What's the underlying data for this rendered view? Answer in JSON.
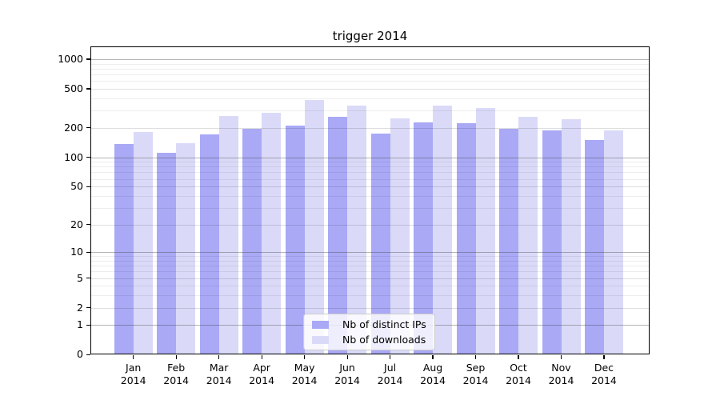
{
  "title": "trigger 2014",
  "chart_data": {
    "type": "bar",
    "title": "trigger 2014",
    "xlabel": "",
    "ylabel": "",
    "yscale": "symlog (log1p)",
    "ylim": [
      0,
      1340
    ],
    "grid": true,
    "legend_position": "lower center",
    "y_ticks": [
      0,
      1,
      2,
      5,
      10,
      20,
      50,
      100,
      200,
      500,
      1000
    ],
    "categories": [
      "Jan 2014",
      "Feb 2014",
      "Mar 2014",
      "Apr 2014",
      "May 2014",
      "Jun 2014",
      "Jul 2014",
      "Aug 2014",
      "Sep 2014",
      "Oct 2014",
      "Nov 2014",
      "Dec 2014"
    ],
    "series": [
      {
        "name": "Nb of distinct IPs",
        "color": "#a9a9f6",
        "values": [
          137,
          112,
          171,
          194,
          209,
          257,
          174,
          227,
          225,
          197,
          189,
          151
        ]
      },
      {
        "name": "Nb of downloads",
        "color": "#dadaf8",
        "values": [
          181,
          140,
          263,
          287,
          383,
          338,
          250,
          340,
          320,
          257,
          245,
          188
        ]
      }
    ]
  },
  "colors": {
    "background": "#ffffff",
    "axis": "#000000",
    "major_grid": "rgba(60,60,60,0.38)",
    "mid_grid": "rgba(0,0,0,0.13)",
    "minor_grid": "rgba(0,0,0,0.07)",
    "legend_border": "#cccccc",
    "legend_bg": "rgba(255,255,255,0.8)"
  }
}
